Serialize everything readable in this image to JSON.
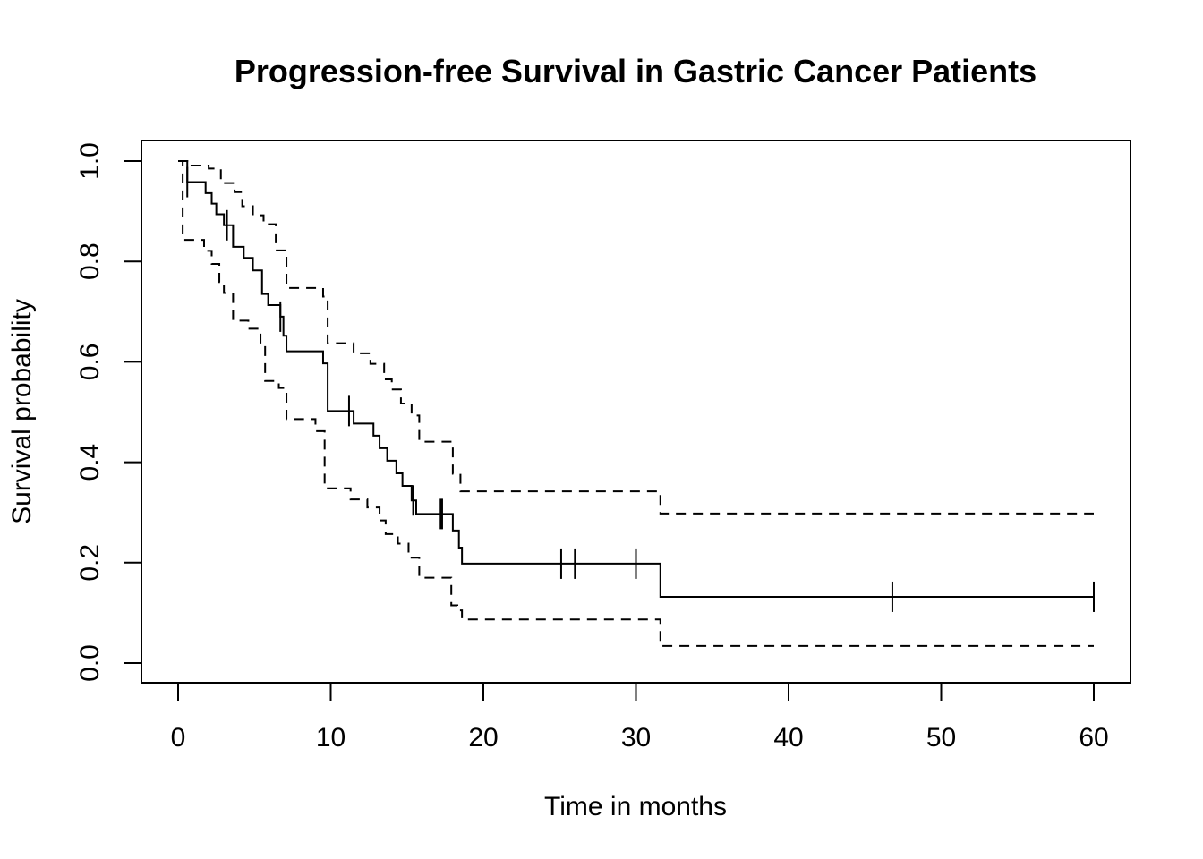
{
  "chart_data": {
    "type": "line",
    "title": "Progression-free Survival in Gastric Cancer Patients",
    "xlabel": "Time in months",
    "ylabel": "Survival probability",
    "xlim": [
      0,
      60
    ],
    "ylim": [
      0,
      1
    ],
    "xticks": [
      "0",
      "10",
      "20",
      "30",
      "40",
      "50",
      "60"
    ],
    "yticks": [
      "0.0",
      "0.2",
      "0.4",
      "0.6",
      "0.8",
      "1.0"
    ],
    "grid": false,
    "legend": "none",
    "series": [
      {
        "style": "solid",
        "role": "estimate",
        "x": [
          0,
          0.6,
          1.8,
          2.2,
          2.5,
          3.0,
          3.6,
          4.3,
          4.9,
          5.5,
          5.9,
          6.7,
          6.9,
          7.1,
          9.5,
          9.8,
          11.5,
          12.8,
          13.2,
          13.7,
          14.3,
          14.7,
          15.3,
          15.6,
          18.0,
          18.4,
          18.6,
          31.6,
          60
        ],
        "y": [
          1.0,
          0.958,
          0.936,
          0.915,
          0.894,
          0.872,
          0.829,
          0.807,
          0.782,
          0.735,
          0.713,
          0.69,
          0.652,
          0.621,
          0.597,
          0.502,
          0.477,
          0.453,
          0.428,
          0.403,
          0.378,
          0.353,
          0.324,
          0.297,
          0.264,
          0.23,
          0.198,
          0.132,
          0.132
        ]
      },
      {
        "style": "dashed",
        "role": "upper 95% CI",
        "x": [
          0,
          0.6,
          2.0,
          2.8,
          3.7,
          4.2,
          4.9,
          5.6,
          6.4,
          7.1,
          9.5,
          9.8,
          11.5,
          12.6,
          13.5,
          14.0,
          14.6,
          15.3,
          15.8,
          18.0,
          18.5,
          31.6,
          60
        ],
        "y": [
          1.0,
          0.991,
          0.985,
          0.956,
          0.938,
          0.91,
          0.892,
          0.874,
          0.822,
          0.747,
          0.73,
          0.637,
          0.617,
          0.596,
          0.565,
          0.545,
          0.517,
          0.493,
          0.441,
          0.377,
          0.342,
          0.298,
          0.298
        ]
      },
      {
        "style": "dashed",
        "role": "lower 95% CI",
        "x": [
          0,
          0.3,
          1.7,
          2.2,
          2.7,
          3.0,
          3.6,
          4.6,
          5.4,
          5.7,
          6.6,
          7.1,
          9.0,
          9.6,
          11.3,
          12.4,
          13.2,
          13.6,
          14.4,
          15.1,
          15.8,
          17.9,
          18.3,
          18.6,
          31.6,
          60
        ],
        "y": [
          1.0,
          0.843,
          0.821,
          0.795,
          0.759,
          0.737,
          0.682,
          0.666,
          0.632,
          0.562,
          0.548,
          0.486,
          0.462,
          0.348,
          0.326,
          0.31,
          0.284,
          0.257,
          0.238,
          0.21,
          0.17,
          0.115,
          0.105,
          0.087,
          0.034,
          0.034
        ]
      }
    ],
    "censor_marks": {
      "x": [
        0.6,
        3.2,
        6.7,
        11.2,
        15.4,
        17.2,
        17.3,
        25.1,
        26.0,
        30.0,
        46.8,
        60
      ],
      "y": [
        0.958,
        0.872,
        0.69,
        0.502,
        0.324,
        0.297,
        0.297,
        0.198,
        0.198,
        0.198,
        0.132,
        0.132
      ]
    }
  }
}
